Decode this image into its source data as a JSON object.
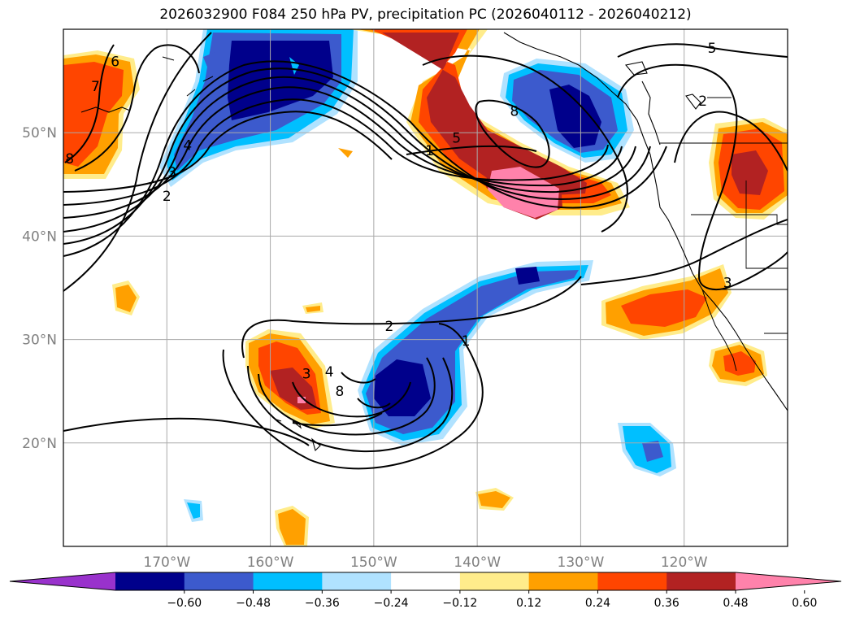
{
  "title": "2026032900 F084 250 hPa PV, precipitation PC (2026040112 - 2026040212)",
  "map": {
    "lon_range": [
      -180,
      -110
    ],
    "lat_range": [
      10,
      60
    ],
    "gridlines": true,
    "lon_ticks": [
      {
        "lon": -170,
        "label": "170°W"
      },
      {
        "lon": -160,
        "label": "160°W"
      },
      {
        "lon": -150,
        "label": "150°W"
      },
      {
        "lon": -140,
        "label": "140°W"
      },
      {
        "lon": -130,
        "label": "130°W"
      },
      {
        "lon": -120,
        "label": "120°W"
      }
    ],
    "lat_ticks": [
      {
        "lat": 50,
        "label": "50°N"
      },
      {
        "lat": 40,
        "label": "40°N"
      },
      {
        "lat": 30,
        "label": "30°N"
      },
      {
        "lat": 20,
        "label": "20°N"
      }
    ],
    "contour_labels": [
      {
        "text": "6",
        "lon": -175,
        "lat": 56.9
      },
      {
        "text": "7",
        "lon": -176.9,
        "lat": 54.5
      },
      {
        "text": "8",
        "lon": -179.4,
        "lat": 47.5
      },
      {
        "text": "4",
        "lon": -168,
        "lat": 48.8
      },
      {
        "text": "3",
        "lon": -169.5,
        "lat": 46.2
      },
      {
        "text": "2",
        "lon": -170,
        "lat": 43.9
      },
      {
        "text": "1",
        "lon": -144.6,
        "lat": 48.3
      },
      {
        "text": "5",
        "lon": -142,
        "lat": 49.5
      },
      {
        "text": "8",
        "lon": -136.4,
        "lat": 52.1
      },
      {
        "text": "5",
        "lon": -117.3,
        "lat": 58.2
      },
      {
        "text": "2",
        "lon": -118.2,
        "lat": 53.1
      },
      {
        "text": "3",
        "lon": -115.8,
        "lat": 35.5
      },
      {
        "text": "2",
        "lon": -148.5,
        "lat": 31.3
      },
      {
        "text": "1",
        "lon": -141.1,
        "lat": 29.9
      },
      {
        "text": "3",
        "lon": -156.5,
        "lat": 26.7
      },
      {
        "text": "4",
        "lon": -154.3,
        "lat": 26.9
      },
      {
        "text": "8",
        "lon": -153.3,
        "lat": 25
      }
    ],
    "shading_colors": {
      "strong_negative": "#00008b",
      "negative": "#3c5acd",
      "moderate_negative": "#00bfff",
      "weak_negative": "#b0e2ff",
      "weak_positive": "#ffec8b",
      "moderate_positive": "#ffa000",
      "positive": "#ff4500",
      "strong_positive": "#b22222",
      "very_strong_positive": "#ff82ab"
    }
  },
  "colorbar": {
    "ticks": [
      "−0.60",
      "−0.48",
      "−0.36",
      "−0.24",
      "−0.12",
      "0.12",
      "0.24",
      "0.36",
      "0.48",
      "0.60"
    ],
    "colors": [
      "#9932cc",
      "#00008b",
      "#3c5acd",
      "#00bfff",
      "#b0e2ff",
      "#ffffff",
      "#ffec8b",
      "#ffa000",
      "#ff4500",
      "#b22222",
      "#ff82ab"
    ]
  }
}
